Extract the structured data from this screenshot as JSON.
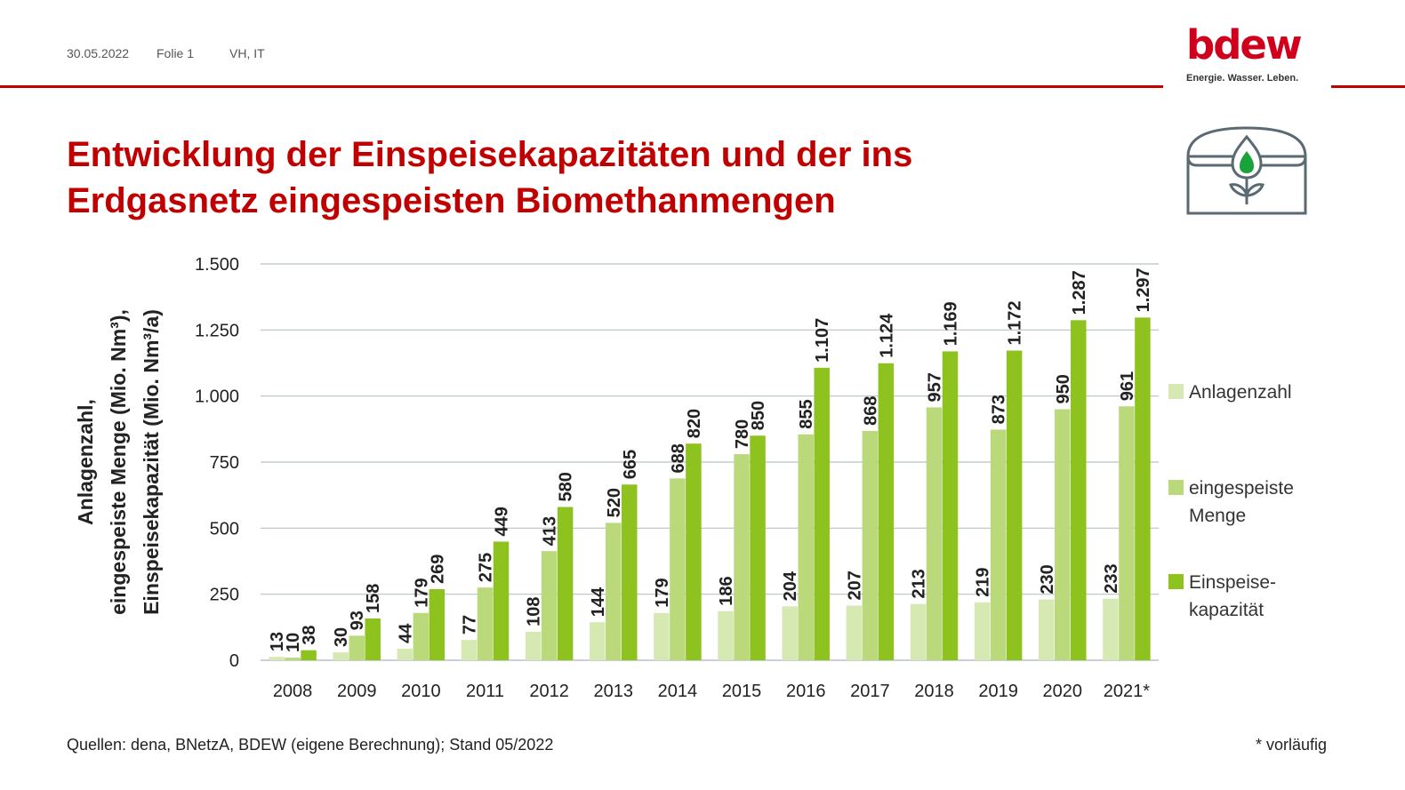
{
  "header": {
    "date": "30.05.2022",
    "slide": "Folie 1",
    "author": "VH, IT",
    "accent_color": "#c00000"
  },
  "logo": {
    "wordmark": "bdew",
    "tagline": "Energie. Wasser. Leben.",
    "color": "#d0001c"
  },
  "title": {
    "line1": "Entwicklung der Einspeisekapazitäten und der ins",
    "line2": "Erdgasnetz eingespeisten Biomethanmengen"
  },
  "icon": "biogas-plant-icon",
  "chart_data": {
    "type": "bar",
    "ylabel": [
      "Anlagenzahl,",
      "eingespeiste Menge (Mio. Nm³),",
      "Einspeisekapazität (Mio. Nm³/a)"
    ],
    "ylim": [
      0,
      1500
    ],
    "yticks": [
      0,
      250,
      500,
      750,
      1000,
      1250,
      1500
    ],
    "ytick_labels": [
      "0",
      "250",
      "500",
      "750",
      "1.000",
      "1.250",
      "1.500"
    ],
    "grid": true,
    "legend_position": "right",
    "categories": [
      "2008",
      "2009",
      "2010",
      "2011",
      "2012",
      "2013",
      "2014",
      "2015",
      "2016",
      "2017",
      "2018",
      "2019",
      "2020",
      "2021*"
    ],
    "series": [
      {
        "name": "Anlagenzahl",
        "color": "#d6e9b3",
        "values": [
          13,
          30,
          44,
          77,
          108,
          144,
          179,
          186,
          204,
          207,
          213,
          219,
          230,
          233
        ],
        "labels": [
          "13",
          "30",
          "44",
          "77",
          "108",
          "144",
          "179",
          "186",
          "204",
          "207",
          "213",
          "219",
          "230",
          "233"
        ]
      },
      {
        "name": "eingespeiste Menge",
        "color": "#b9d97a",
        "values": [
          10,
          93,
          179,
          275,
          413,
          520,
          688,
          780,
          855,
          868,
          957,
          873,
          950,
          961
        ],
        "labels": [
          "10",
          "93",
          "179",
          "275",
          "413",
          "520",
          "688",
          "780",
          "855",
          "868",
          "957",
          "873",
          "950",
          "961"
        ]
      },
      {
        "name": "Einspeisekapazität",
        "color": "#8dc21f",
        "values": [
          38,
          158,
          269,
          449,
          580,
          665,
          820,
          850,
          1107,
          1124,
          1169,
          1172,
          1287,
          1297
        ],
        "labels": [
          "38",
          "158",
          "269",
          "449",
          "580",
          "665",
          "820",
          "850",
          "1.107",
          "1.124",
          "1.169",
          "1.172",
          "1.287",
          "1.297"
        ]
      }
    ]
  },
  "legend": {
    "anlagenzahl": "Anlagenzahl",
    "menge_line1": "eingespeiste",
    "menge_line2": "Menge",
    "kapazitaet_line1": "Einspeise-",
    "kapazitaet_line2": "kapazität"
  },
  "footer": {
    "source": "Quellen: dena, BNetzA, BDEW (eigene Berechnung); Stand 05/2022",
    "note": "* vorläufig"
  }
}
